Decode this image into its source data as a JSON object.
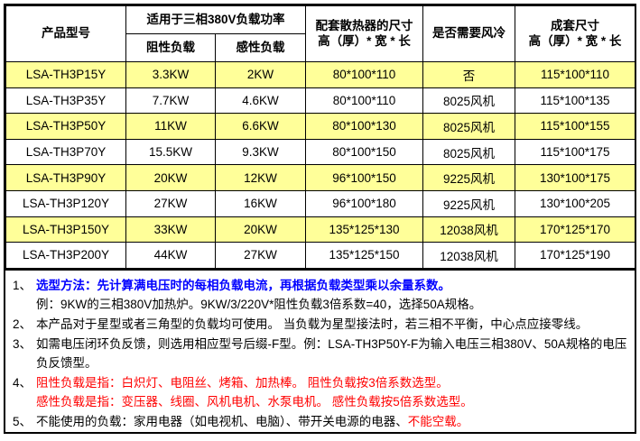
{
  "colors": {
    "highlight": "#FFFF99",
    "blue": "#0000FF",
    "red": "#FF0000",
    "border": "#000000"
  },
  "table": {
    "header": {
      "model": "产品型号",
      "power_group": "适用于三相380V负载功率",
      "resistive": "阻性负载",
      "inductive": "感性负载",
      "heatsink_line1": "配套散热器的尺寸",
      "heatsink_line2": "高（厚）* 宽 * 长",
      "fan": "是否需要风冷",
      "set_line1": "成套尺寸",
      "set_line2": "高（厚）* 宽 * 长"
    },
    "rows": [
      {
        "model": "LSA-TH3P15Y",
        "resistive": "3.3KW",
        "inductive": "2KW",
        "heatsink": "80*100*110",
        "fan": "否",
        "set": "115*100*110",
        "highlight": true
      },
      {
        "model": "LSA-TH3P35Y",
        "resistive": "7.7KW",
        "inductive": "4.6KW",
        "heatsink": "80*100*110",
        "fan": "8025风机",
        "set": "115*100*135",
        "highlight": false
      },
      {
        "model": "LSA-TH3P50Y",
        "resistive": "11KW",
        "inductive": "6.6KW",
        "heatsink": "80*100*130",
        "fan": "8025风机",
        "set": "115*100*155",
        "highlight": true
      },
      {
        "model": "LSA-TH3P70Y",
        "resistive": "15.5KW",
        "inductive": "9.3KW",
        "heatsink": "80*100*150",
        "fan": "8025风机",
        "set": "115*100*175",
        "highlight": false
      },
      {
        "model": "LSA-TH3P90Y",
        "resistive": "20KW",
        "inductive": "12KW",
        "heatsink": "96*100*150",
        "fan": "9225风机",
        "set": "130*100*175",
        "highlight": true
      },
      {
        "model": "LSA-TH3P120Y",
        "resistive": "27KW",
        "inductive": "16KW",
        "heatsink": "96*100*180",
        "fan": "9225风机",
        "set": "130*100*205",
        "highlight": false
      },
      {
        "model": "LSA-TH3P150Y",
        "resistive": "33KW",
        "inductive": "20KW",
        "heatsink": "135*125*130",
        "fan": "12038风机",
        "set": "170*125*170",
        "highlight": true
      },
      {
        "model": "LSA-TH3P200Y",
        "resistive": "44KW",
        "inductive": "27KW",
        "heatsink": "135*125*150",
        "fan": "12038风机",
        "set": "170*125*190",
        "highlight": false
      }
    ]
  },
  "notes": [
    {
      "num": "1、",
      "lines": [
        [
          {
            "t": "选型方法：先计算满电压时的每相负载电流，再根据负载类型乘以余量系数。",
            "c": "blue",
            "b": true
          }
        ],
        [
          {
            "t": "例：9KW的三相380V加热炉。9KW/3/220V*阻性负载3倍系数=40，选择50A规格。"
          }
        ]
      ]
    },
    {
      "num": "2、",
      "lines": [
        [
          {
            "t": "本产品对于星型或者三角型的负载均可使用。 当负载为星型接法时，若三相不平衡，中心点应接零线。"
          }
        ]
      ]
    },
    {
      "num": "3、",
      "lines": [
        [
          {
            "t": "如需电压闭环负反馈，则选用相应型号后缀-F型。例：LSA-TH3P50Y-F为输入电压三相380V、50A规格的电压负反馈型。"
          }
        ]
      ]
    },
    {
      "num": "4、",
      "lines": [
        [
          {
            "t": "阻性负载是指：白炽灯、电阻丝、烤箱、加热棒。 阻性负载按3倍系数选型。",
            "c": "red"
          }
        ],
        [
          {
            "t": "感性负载是指：变压器、线圈、风机电机、水泵电机。 感性负载按5倍系数选型。",
            "c": "red"
          }
        ]
      ]
    },
    {
      "num": "5、",
      "lines": [
        [
          {
            "t": "不能使用的负载：家用电器（如电视机、电脑）、带开关电源的电器、"
          },
          {
            "t": "不能空载。",
            "c": "red"
          }
        ]
      ]
    }
  ]
}
